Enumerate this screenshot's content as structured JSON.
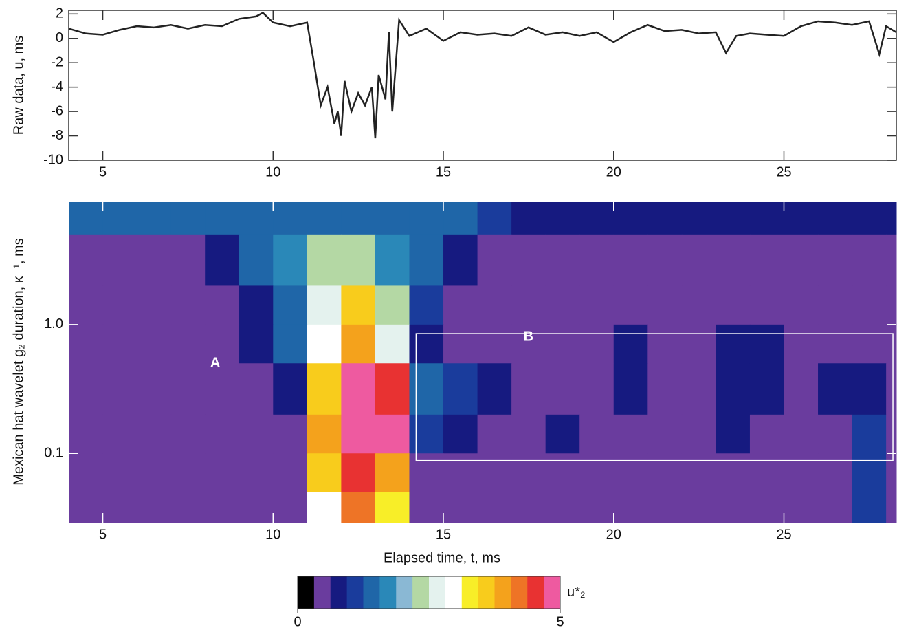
{
  "chart_data": [
    {
      "type": "line",
      "y_label": "Raw data, u, ms",
      "xlim": [
        4,
        28.3
      ],
      "ylim": [
        -10,
        2.3
      ],
      "xticks": [
        5,
        10,
        15,
        20,
        25
      ],
      "yticks": [
        2,
        0,
        -2,
        -4,
        -6,
        -8,
        -10
      ],
      "color": "#222222",
      "x": [
        4,
        4.5,
        5,
        5.5,
        6,
        6.5,
        7,
        7.5,
        8,
        8.5,
        9,
        9.5,
        9.7,
        10,
        10.5,
        11,
        11.2,
        11.4,
        11.6,
        11.8,
        11.9,
        12,
        12.1,
        12.3,
        12.5,
        12.7,
        12.9,
        13,
        13.1,
        13.3,
        13.4,
        13.5,
        13.7,
        14,
        14.5,
        15,
        15.5,
        16,
        16.5,
        17,
        17.5,
        18,
        18.5,
        19,
        19.5,
        20,
        20.5,
        21,
        21.5,
        22,
        22.5,
        23,
        23.3,
        23.6,
        24,
        24.5,
        25,
        25.5,
        26,
        26.5,
        27,
        27.5,
        27.8,
        28,
        28.3
      ],
      "values": [
        0.8,
        0.4,
        0.3,
        0.7,
        1.0,
        0.9,
        1.1,
        0.8,
        1.1,
        1.0,
        1.6,
        1.8,
        2.1,
        1.3,
        1.0,
        1.3,
        -2,
        -5.5,
        -4,
        -7,
        -6,
        -8,
        -3.5,
        -6,
        -4.5,
        -5.5,
        -4,
        -8.2,
        -3,
        -5,
        0.5,
        -6,
        1.5,
        0.2,
        0.8,
        -0.2,
        0.5,
        0.3,
        0.4,
        0.2,
        0.9,
        0.3,
        0.5,
        0.2,
        0.5,
        -0.3,
        0.5,
        1.1,
        0.6,
        0.7,
        0.4,
        0.5,
        -1.2,
        0.2,
        0.4,
        0.3,
        0.2,
        1.0,
        1.4,
        1.3,
        1.1,
        1.4,
        -1.3,
        1.0,
        0.5
      ]
    },
    {
      "type": "heatmap",
      "x_label": "Elapsed time, t, ms",
      "y_label": "Mexican hat wavelet g₂ duration, κ⁻¹, ms",
      "xlim": [
        4,
        28.3
      ],
      "ylim": [
        0.029,
        9
      ],
      "ylog": true,
      "xticks": [
        5,
        10,
        15,
        20,
        25
      ],
      "yticks": [
        0.1,
        {
          "value": 1,
          "label": "1.0"
        }
      ],
      "x_edges": [
        4,
        5,
        6,
        7,
        8,
        9,
        10,
        11,
        12,
        13,
        14,
        15,
        16,
        17,
        18,
        19,
        20,
        21,
        22,
        23,
        24,
        25,
        26,
        27,
        28,
        28.3
      ],
      "y_edges": [
        9,
        5,
        2,
        1,
        0.5,
        0.2,
        0.1,
        0.05,
        0.029
      ],
      "z": [
        [
          1.3,
          1.3,
          1.3,
          1.3,
          1.3,
          1.3,
          1.3,
          1.3,
          1.3,
          1.3,
          1.3,
          1.3,
          1.1,
          0.8,
          0.8,
          0.8,
          0.8,
          0.8,
          0.8,
          0.8,
          0.8,
          0.8,
          0.8,
          0.8,
          0.8
        ],
        [
          0.5,
          0.5,
          0.5,
          0.5,
          0.8,
          1.3,
          1.8,
          2.2,
          2.2,
          1.8,
          1.3,
          0.8,
          0.5,
          0.5,
          0.5,
          0.5,
          0.5,
          0.5,
          0.5,
          0.5,
          0.5,
          0.5,
          0.5,
          0.5,
          0.5
        ],
        [
          0.5,
          0.5,
          0.5,
          0.5,
          0.5,
          0.8,
          1.3,
          2.6,
          3.6,
          2.4,
          1.0,
          0.5,
          0.5,
          0.5,
          0.5,
          0.5,
          0.5,
          0.5,
          0.5,
          0.5,
          0.5,
          0.5,
          0.5,
          0.5,
          0.5
        ],
        [
          0.5,
          0.5,
          0.5,
          0.5,
          0.5,
          0.8,
          1.3,
          3.0,
          4.0,
          2.8,
          0.8,
          0.5,
          0.5,
          0.5,
          0.5,
          0.5,
          0.8,
          0.5,
          0.5,
          0.8,
          0.8,
          0.5,
          0.5,
          0.5,
          0.5
        ],
        [
          0.5,
          0.5,
          0.5,
          0.5,
          0.5,
          0.5,
          0.8,
          3.5,
          4.8,
          4.6,
          1.3,
          1.1,
          0.8,
          0.5,
          0.5,
          0.5,
          0.8,
          0.5,
          0.5,
          0.8,
          0.8,
          0.5,
          0.8,
          0.8,
          0.5
        ],
        [
          0.5,
          0.5,
          0.5,
          0.5,
          0.5,
          0.5,
          0.6,
          4.0,
          4.8,
          4.8,
          1.0,
          0.9,
          0.5,
          0.5,
          0.8,
          0.5,
          0.5,
          0.5,
          0.5,
          0.8,
          0.5,
          0.5,
          0.5,
          1.1,
          0.5
        ],
        [
          0.5,
          0.5,
          0.5,
          0.5,
          0.5,
          0.5,
          0.5,
          3.5,
          4.5,
          3.8,
          0.5,
          0.5,
          0.5,
          0.5,
          0.5,
          0.5,
          0.5,
          0.5,
          0.5,
          0.5,
          0.5,
          0.5,
          0.5,
          1.1,
          0.5
        ],
        [
          0.5,
          0.5,
          0.5,
          0.5,
          0.5,
          0.5,
          0.5,
          3.0,
          4.2,
          3.2,
          0.5,
          0.5,
          0.5,
          0.5,
          0.5,
          0.5,
          0.5,
          0.5,
          0.5,
          0.5,
          0.5,
          0.5,
          0.5,
          1.0,
          0.5
        ]
      ],
      "annotations": [
        {
          "text": "A",
          "x": 8.3,
          "y": 0.5
        }
      ],
      "box": {
        "label": "B",
        "x": [
          14.2,
          28.2
        ],
        "y": [
          0.088,
          0.85
        ],
        "label_x": 17.5,
        "label_y": 0.8
      },
      "colorbar": {
        "label": "u*₂",
        "lim": [
          0,
          5
        ],
        "ticks": [
          0,
          5
        ],
        "colors": [
          "#000000",
          "#6a3c9e",
          "#161a80",
          "#1a3c9c",
          "#1f66a8",
          "#2a88b8",
          "#8ab8d4",
          "#b4d8a4",
          "#e4f2ee",
          "#ffffff",
          "#f8ee28",
          "#f8cc1c",
          "#f4a21c",
          "#ee7426",
          "#e83232",
          "#ee5aa0"
        ]
      }
    }
  ]
}
